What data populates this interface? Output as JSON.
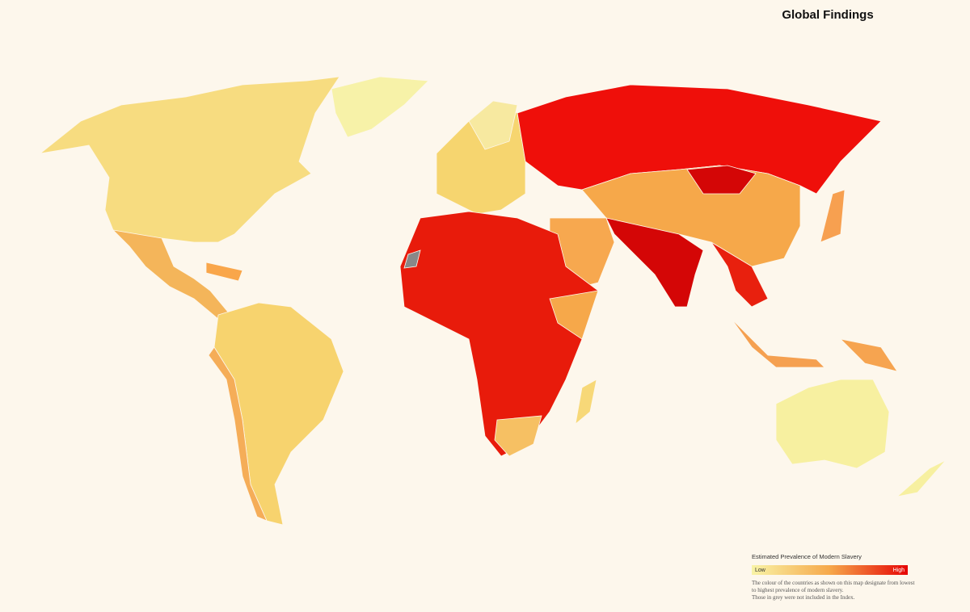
{
  "header": {
    "title": "Global Findings"
  },
  "legend": {
    "title": "Estimated Prevalence of Modern Slavery",
    "low": "Low",
    "high": "High",
    "note": [
      "The colour of the countries as shown on this map designate from lowest",
      "to highest prevalence of modern slavery.",
      "Those in grey were not included in the Index."
    ]
  }
}
